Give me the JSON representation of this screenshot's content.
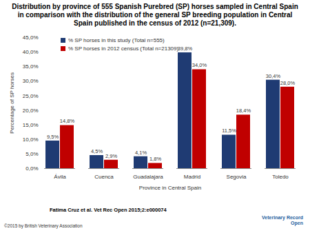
{
  "chart_data": {
    "type": "bar",
    "title": "Distribution by province of 555 Spanish Purebred (SP) horses sampled in Central Spain in comparison with the distribution of the general SP breeding population in Central Spain published in the census of 2012 (n=21,309).",
    "x_label": "Province in Central Spain",
    "y_label": "Percentage of SP horses",
    "categories": [
      "Ávila",
      "Cuenca",
      "Guadalajara",
      "Madrid",
      "Segovia",
      "Toledo"
    ],
    "series": [
      {
        "name": "% SP horses in this study (Total n=555)",
        "color": "#1f3b73",
        "values": [
          9.5,
          4.5,
          4.1,
          39.8,
          11.5,
          30.4
        ],
        "value_labels": [
          "9,5%",
          "4,5%",
          "4,1%",
          "39,8%",
          "11,5%",
          "30,4%"
        ]
      },
      {
        "name": "% SP horses in 2012 census (Total n=21309)",
        "color": "#c00000",
        "values": [
          14.8,
          2.9,
          1.8,
          34.0,
          18.4,
          28.0
        ],
        "value_labels": [
          "14,8%",
          "2,9%",
          "1,8%",
          "34,0%",
          "18,4%",
          "28,0%"
        ]
      }
    ],
    "ylim": [
      0,
      45
    ],
    "yticks": [
      {
        "value": 0,
        "label": "0,0%"
      },
      {
        "value": 5,
        "label": "5,0%"
      },
      {
        "value": 10,
        "label": "10,0%"
      },
      {
        "value": 15,
        "label": "15,0%"
      },
      {
        "value": 20,
        "label": "20,0%"
      },
      {
        "value": 25,
        "label": "25,0%"
      },
      {
        "value": 30,
        "label": "30,0%"
      },
      {
        "value": 35,
        "label": "35,0%"
      },
      {
        "value": 40,
        "label": "40,0%"
      },
      {
        "value": 45,
        "label": "45,0%"
      }
    ],
    "grid": false,
    "legend": "top-left",
    "data_labels": true,
    "caption": "Fatima Cruz et al. Vet Rec Open 2015;2:e000074",
    "copyright": "©2015 by British Veterinary Association",
    "logo": "Veterinary Record Open"
  }
}
